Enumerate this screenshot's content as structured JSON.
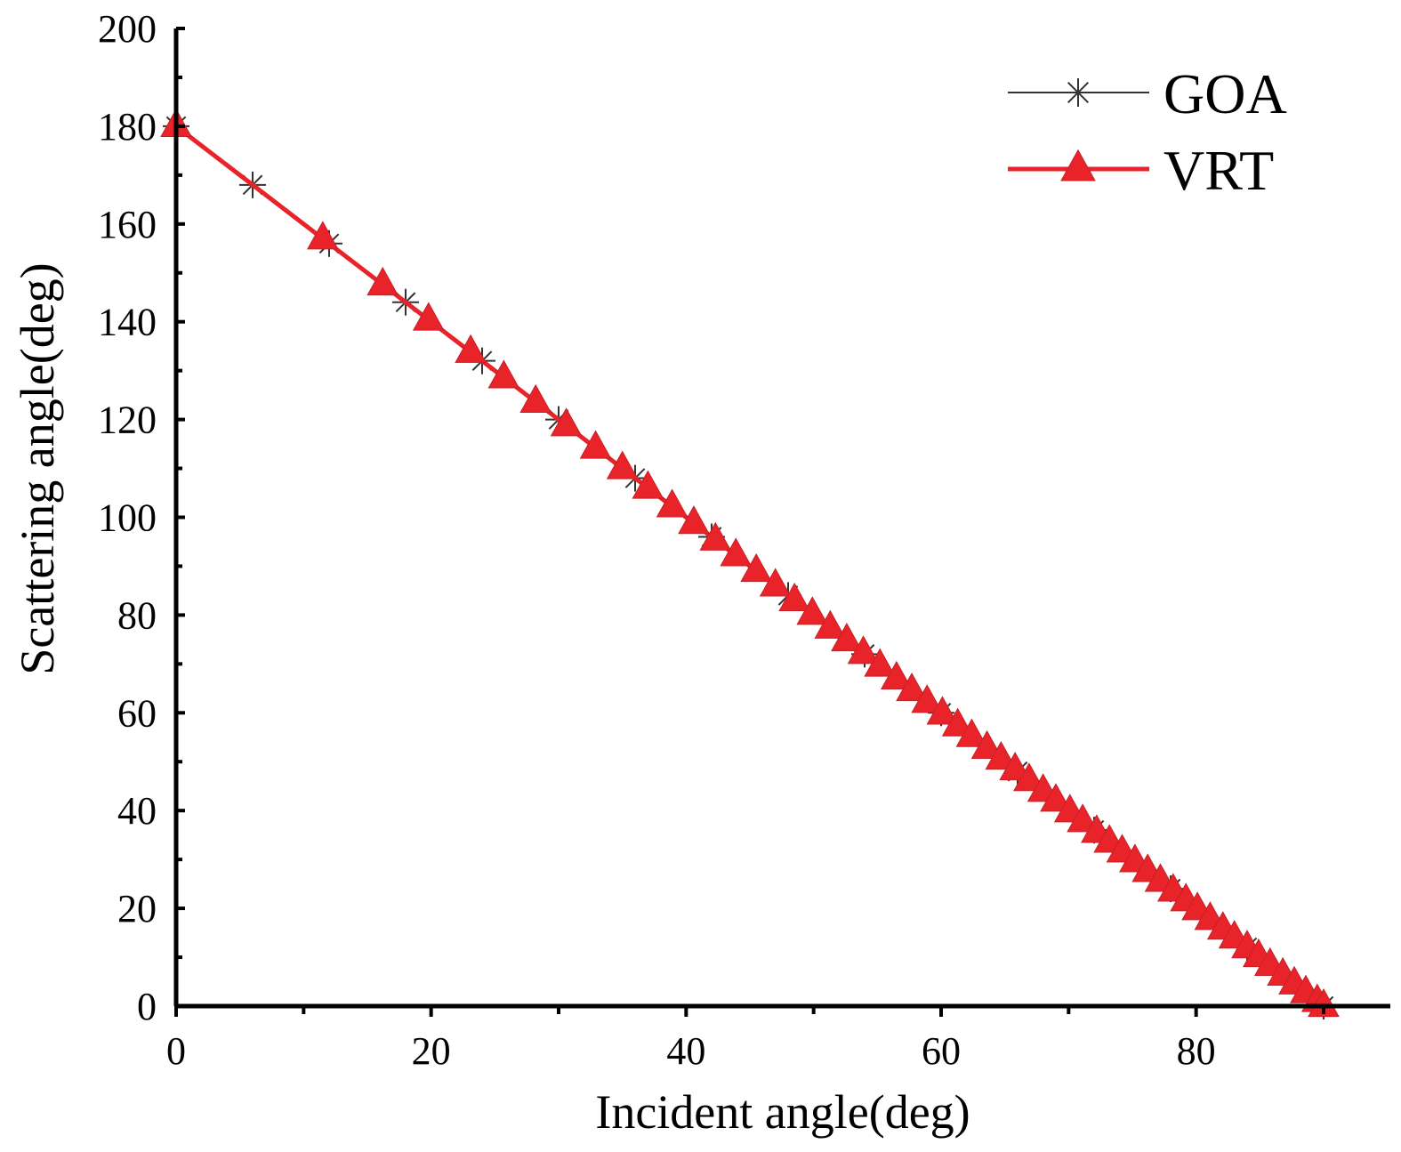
{
  "chart_data": {
    "type": "line",
    "title": "",
    "xlabel": "Incident angle(deg)",
    "ylabel": "Scattering angle(deg)",
    "xlim": [
      0,
      95
    ],
    "ylim": [
      0,
      200
    ],
    "x_ticks": [
      "0",
      "20",
      "40",
      "60",
      "80"
    ],
    "y_ticks": [
      "0",
      "20",
      "40",
      "60",
      "80",
      "100",
      "120",
      "140",
      "160",
      "180",
      "200"
    ],
    "grid": false,
    "legend_position": "top-right",
    "series": [
      {
        "name": "GOA",
        "color": "#333333",
        "marker": "asterisk",
        "x": [
          0,
          6,
          12,
          18,
          24,
          30,
          36,
          42,
          48,
          54,
          60,
          66,
          72,
          78,
          84,
          90
        ],
        "y": [
          180,
          168,
          156,
          144,
          132,
          120,
          108,
          96,
          84,
          72,
          60,
          48,
          36,
          24,
          12,
          0
        ]
      },
      {
        "name": "VRT",
        "color": "#e8242a",
        "marker": "triangle",
        "x": [
          0,
          11.5,
          16.2,
          19.8,
          23.1,
          25.7,
          28.2,
          30.6,
          32.9,
          35.0,
          37.0,
          38.9,
          40.6,
          42.3,
          43.9,
          45.5,
          47.0,
          48.5,
          49.9,
          51.3,
          52.6,
          53.9,
          55.2,
          56.5,
          57.7,
          58.9,
          60.1,
          61.3,
          62.4,
          63.6,
          64.7,
          65.8,
          66.9,
          68.0,
          69.0,
          70.1,
          71.1,
          72.2,
          73.2,
          74.2,
          75.2,
          76.2,
          77.2,
          78.2,
          79.2,
          80.1,
          81.1,
          82.1,
          83.0,
          84.0,
          84.9,
          85.8,
          86.8,
          87.7,
          88.6,
          89.5,
          90.0
        ],
        "y": [
          180,
          157.0,
          147.6,
          140.4,
          133.8,
          128.6,
          123.6,
          118.8,
          114.2,
          110.0,
          106.0,
          102.2,
          98.8,
          95.4,
          92.2,
          89.0,
          86.0,
          83.0,
          80.2,
          77.4,
          74.8,
          72.2,
          69.6,
          67.0,
          64.6,
          62.2,
          59.8,
          57.4,
          55.2,
          52.8,
          50.6,
          48.4,
          46.2,
          44.0,
          42.0,
          39.8,
          37.8,
          35.6,
          33.6,
          31.6,
          29.6,
          27.6,
          25.6,
          23.6,
          21.6,
          19.8,
          17.8,
          15.8,
          14.0,
          12.0,
          10.2,
          8.4,
          6.4,
          4.6,
          2.8,
          1.0,
          0
        ]
      }
    ]
  }
}
